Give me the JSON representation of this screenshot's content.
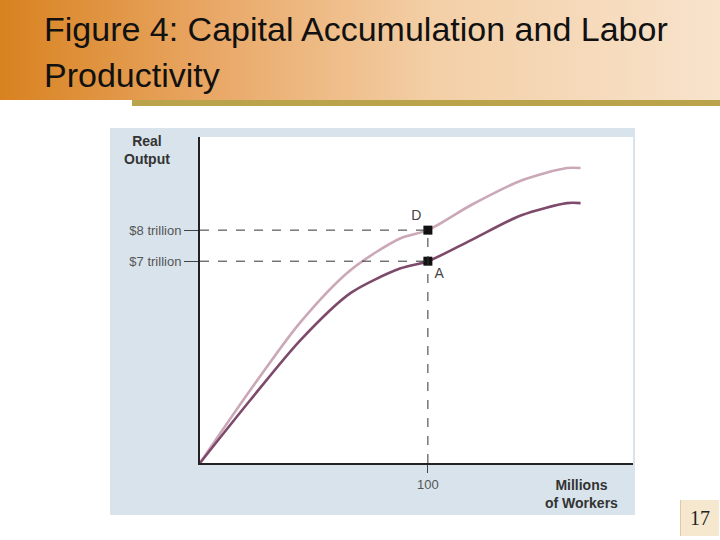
{
  "chart_data": {
    "type": "line",
    "title": "Figure 4:  Capital Accumulation and Labor Productivity",
    "x_label": "Millions of Workers",
    "y_label": "Real Output",
    "x": [
      0,
      22,
      44,
      66,
      88,
      100,
      119,
      141,
      161,
      167
    ],
    "series": [
      {
        "color": "#cba8b8",
        "values": [
          0.5,
          2.84,
          5.03,
          6.71,
          7.74,
          8.0,
          8.81,
          9.6,
          10.0,
          10.0
        ]
      },
      {
        "color": "#7d4a6c",
        "values": [
          0.5,
          2.52,
          4.45,
          5.97,
          6.77,
          7.0,
          7.68,
          8.48,
          8.87,
          8.87
        ]
      }
    ],
    "points": [
      {
        "label": "D",
        "x": 100,
        "y": 8
      },
      {
        "label": "A",
        "x": 100,
        "y": 7
      }
    ],
    "xlim": [
      0,
      190
    ],
    "ylim": [
      0.5,
      11
    ],
    "xticks": [
      100
    ],
    "yticks": [
      {
        "value": 7,
        "label": "$7 trillion"
      },
      {
        "value": 8,
        "label": "$8 trillion"
      }
    ],
    "grid": false,
    "line_style": "dashed",
    "marker": "square"
  },
  "slide_number": "17"
}
